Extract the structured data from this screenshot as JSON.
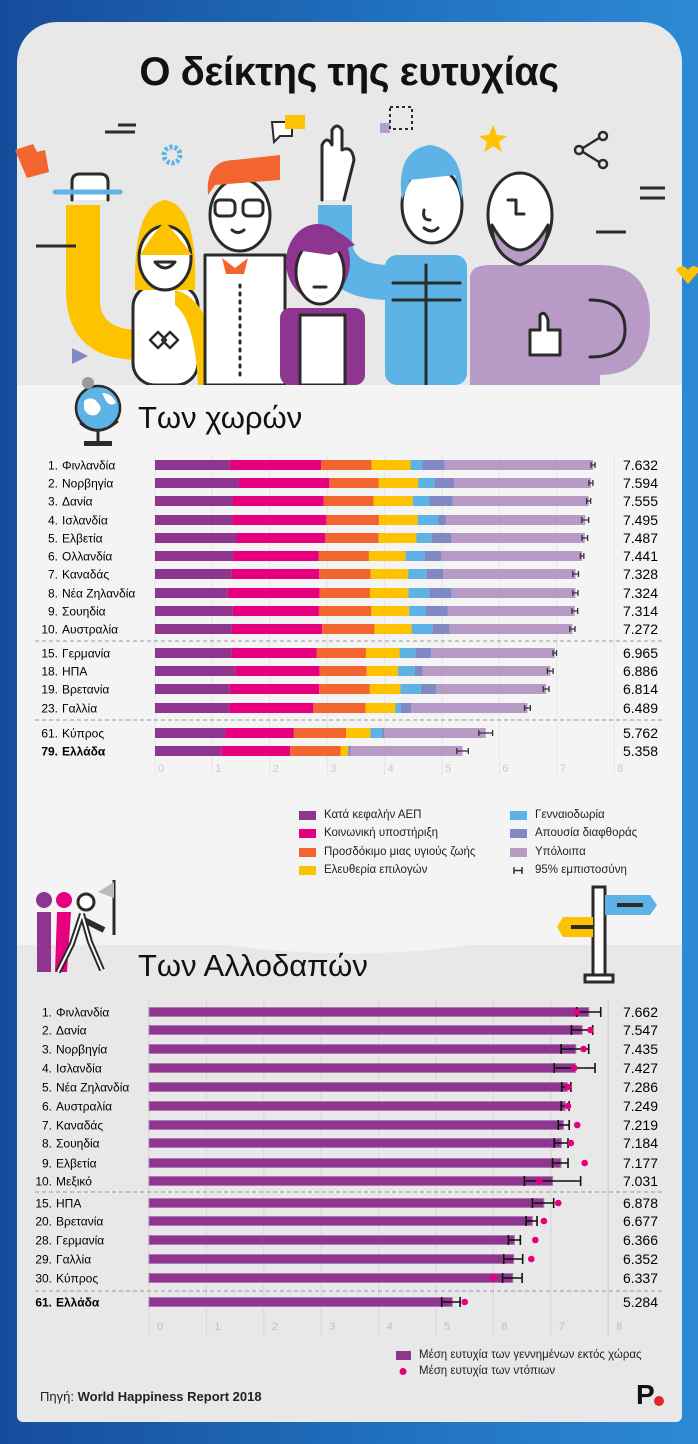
{
  "header": {
    "title": "Ο δείκτης της ευτυχίας"
  },
  "section_countries": {
    "title": "Των χωρών",
    "icon": "globe-icon"
  },
  "section_immigrants": {
    "title": "Των Αλλοδαπών",
    "icons": [
      "walking-people-icon",
      "signpost-icon"
    ]
  },
  "legend_countries": {
    "items": [
      {
        "label": "Κατά κεφαλήν ΑΕΠ",
        "color": "#8e3590"
      },
      {
        "label": "Κοινωνική υποστήριξη",
        "color": "#e6007e"
      },
      {
        "label": "Προσδόκιμο μιας υγιούς ζωής",
        "color": "#f26531"
      },
      {
        "label": "Ελευθερία επιλογών",
        "color": "#fdc300"
      },
      {
        "label": "Γενναιοδωρία",
        "color": "#5db3e5"
      },
      {
        "label": "Απουσία διαφθοράς",
        "color": "#8189c4"
      },
      {
        "label": "Υπόλοιπα",
        "color": "#b89ac7"
      },
      {
        "label": "95% εμπιστοσύνη",
        "color": "#333333"
      }
    ]
  },
  "legend_immigrants": {
    "bar_label": "Μέση ευτυχία των γεννημένων εκτός χώρας",
    "dot_label": "Μέση ευτυχία των ντόπιων",
    "bar_color": "#8e3590",
    "dot_color": "#e6007e"
  },
  "chart_data": [
    {
      "type": "bar",
      "orientation": "horizontal",
      "stacked": true,
      "title": "Των χωρών",
      "xlim": [
        0,
        8
      ],
      "x_ticks": [
        "0",
        "1",
        "2",
        "3",
        "4",
        "5",
        "6",
        "7",
        "8"
      ],
      "grid": true,
      "legend_position": "bottom-right",
      "components": [
        "Κατά κεφαλήν ΑΕΠ",
        "Κοινωνική υποστήριξη",
        "Προσδόκιμο μιας υγιούς ζωής",
        "Ελευθερία επιλογών",
        "Γενναιοδωρία",
        "Απουσία διαφθοράς",
        "Υπόλοιπα"
      ],
      "rows": [
        {
          "rank": "1.",
          "name": "Φινλανδία",
          "total": "7.632",
          "segments": [
            1.305,
            1.592,
            0.874,
            0.681,
            0.202,
            0.393,
            2.585
          ],
          "ci": 0.035
        },
        {
          "rank": "2.",
          "name": "Νορβηγία",
          "total": "7.594",
          "segments": [
            1.456,
            1.582,
            0.861,
            0.686,
            0.286,
            0.34,
            2.383
          ],
          "ci": 0.035
        },
        {
          "rank": "3.",
          "name": "Δανία",
          "total": "7.555",
          "segments": [
            1.351,
            1.59,
            0.868,
            0.683,
            0.284,
            0.408,
            2.371
          ],
          "ci": 0.035
        },
        {
          "rank": "4.",
          "name": "Ισλανδία",
          "total": "7.495",
          "segments": [
            1.343,
            1.644,
            0.914,
            0.677,
            0.353,
            0.138,
            2.426
          ],
          "ci": 0.06
        },
        {
          "rank": "5.",
          "name": "Ελβετία",
          "total": "7.487",
          "segments": [
            1.42,
            1.549,
            0.927,
            0.66,
            0.256,
            0.357,
            2.318
          ],
          "ci": 0.05
        },
        {
          "rank": "6.",
          "name": "Ολλανδία",
          "total": "7.441",
          "segments": [
            1.361,
            1.488,
            0.878,
            0.638,
            0.333,
            0.295,
            2.448
          ],
          "ci": 0.03
        },
        {
          "rank": "7.",
          "name": "Καναδάς",
          "total": "7.328",
          "segments": [
            1.33,
            1.532,
            0.896,
            0.653,
            0.321,
            0.291,
            2.305
          ],
          "ci": 0.05
        },
        {
          "rank": "8.",
          "name": "Νέα Ζηλανδία",
          "total": "7.324",
          "segments": [
            1.268,
            1.601,
            0.876,
            0.669,
            0.365,
            0.389,
            2.156
          ],
          "ci": 0.045
        },
        {
          "rank": "9.",
          "name": "Σουηδία",
          "total": "7.314",
          "segments": [
            1.355,
            1.501,
            0.913,
            0.659,
            0.285,
            0.383,
            2.218
          ],
          "ci": 0.05
        },
        {
          "rank": "10.",
          "name": "Αυστραλία",
          "total": "7.272",
          "segments": [
            1.34,
            1.573,
            0.91,
            0.647,
            0.361,
            0.302,
            2.139
          ],
          "ci": 0.045
        },
        {
          "rank": "15.",
          "name": "Γερμανία",
          "total": "6.965",
          "segments": [
            1.34,
            1.474,
            0.861,
            0.586,
            0.273,
            0.28,
            2.151
          ],
          "ci": 0.03
        },
        {
          "rank": "18.",
          "name": "ΗΠΑ",
          "total": "6.886",
          "segments": [
            1.398,
            1.471,
            0.819,
            0.547,
            0.291,
            0.133,
            2.227
          ],
          "ci": 0.05
        },
        {
          "rank": "19.",
          "name": "Βρετανία",
          "total": "6.814",
          "segments": [
            1.301,
            1.559,
            0.883,
            0.533,
            0.354,
            0.272,
            1.912
          ],
          "ci": 0.05
        },
        {
          "rank": "23.",
          "name": "Γαλλία",
          "total": "6.489",
          "segments": [
            1.293,
            1.466,
            0.908,
            0.52,
            0.098,
            0.176,
            2.028
          ],
          "ci": 0.05
        },
        {
          "rank": "61.",
          "name": "Κύπρος",
          "total": "5.762",
          "segments": [
            1.229,
            1.191,
            0.909,
            0.423,
            0.202,
            0.035,
            1.773
          ],
          "ci": 0.12
        },
        {
          "rank": "79.",
          "name": "Ελλάδα",
          "total": "5.358",
          "segments": [
            1.154,
            1.202,
            0.879,
            0.131,
            0.0,
            0.044,
            1.948
          ],
          "ci": 0.1,
          "bold": true
        }
      ]
    },
    {
      "type": "bar",
      "orientation": "horizontal",
      "title": "Των Αλλοδαπών",
      "xlim": [
        0,
        8
      ],
      "x_ticks": [
        "0",
        "1",
        "2",
        "3",
        "4",
        "5",
        "6",
        "7",
        "8"
      ],
      "grid": true,
      "legend_position": "bottom-right",
      "series": [
        {
          "name": "Μέση ευτυχία των γεννημένων εκτός χώρας",
          "kind": "bar"
        },
        {
          "name": "Μέση ευτυχία των ντόπιων",
          "kind": "dot"
        }
      ],
      "rows": [
        {
          "rank": "1.",
          "name": "Φινλανδία",
          "value": 7.662,
          "label": "7.662",
          "local": 7.45,
          "ci": [
            7.45,
            7.87
          ]
        },
        {
          "rank": "2.",
          "name": "Δανία",
          "value": 7.547,
          "label": "7.547",
          "local": 7.69,
          "ci": [
            7.36,
            7.73
          ]
        },
        {
          "rank": "3.",
          "name": "Νορβηγία",
          "value": 7.435,
          "label": "7.435",
          "local": 7.57,
          "ci": [
            7.18,
            7.66
          ]
        },
        {
          "rank": "4.",
          "name": "Ισλανδία",
          "value": 7.427,
          "label": "7.427",
          "local": 7.41,
          "ci": [
            7.06,
            7.77
          ]
        },
        {
          "rank": "5.",
          "name": "Νέα Ζηλανδία",
          "value": 7.286,
          "label": "7.286",
          "local": 7.3,
          "ci": [
            7.19,
            7.35
          ]
        },
        {
          "rank": "6.",
          "name": "Αυστραλία",
          "value": 7.249,
          "label": "7.249",
          "local": 7.3,
          "ci": [
            7.18,
            7.32
          ]
        },
        {
          "rank": "7.",
          "name": "Καναδάς",
          "value": 7.219,
          "label": "7.219",
          "local": 7.46,
          "ci": [
            7.13,
            7.32
          ]
        },
        {
          "rank": "8.",
          "name": "Σουηδία",
          "value": 7.184,
          "label": "7.184",
          "local": 7.35,
          "ci": [
            7.06,
            7.3
          ]
        },
        {
          "rank": "9.",
          "name": "Ελβετία",
          "value": 7.177,
          "label": "7.177",
          "local": 7.59,
          "ci": [
            7.03,
            7.3
          ]
        },
        {
          "rank": "10.",
          "name": "Μεξικό",
          "value": 7.031,
          "label": "7.031",
          "local": 6.8,
          "ci": [
            6.54,
            7.52
          ]
        },
        {
          "rank": "15.",
          "name": "ΗΠΑ",
          "value": 6.878,
          "label": "6.878",
          "local": 7.13,
          "ci": [
            6.68,
            7.05
          ]
        },
        {
          "rank": "20.",
          "name": "Βρετανία",
          "value": 6.677,
          "label": "6.677",
          "local": 6.88,
          "ci": [
            6.57,
            6.76
          ]
        },
        {
          "rank": "28.",
          "name": "Γερμανία",
          "value": 6.366,
          "label": "6.366",
          "local": 6.73,
          "ci": [
            6.26,
            6.47
          ]
        },
        {
          "rank": "29.",
          "name": "Γαλλία",
          "value": 6.352,
          "label": "6.352",
          "local": 6.66,
          "ci": [
            6.18,
            6.51
          ]
        },
        {
          "rank": "30.",
          "name": "Κύπρος",
          "value": 6.337,
          "label": "6.337",
          "local": 6.0,
          "ci": [
            6.16,
            6.5
          ]
        },
        {
          "rank": "61.",
          "name": "Ελλάδα",
          "value": 5.284,
          "label": "5.284",
          "local": 5.5,
          "ci": [
            5.1,
            5.42
          ],
          "bold": true
        }
      ]
    }
  ],
  "footer": {
    "source_prefix": "Πηγή:",
    "source_name": "World Happiness Report 2018",
    "logo": "P"
  }
}
